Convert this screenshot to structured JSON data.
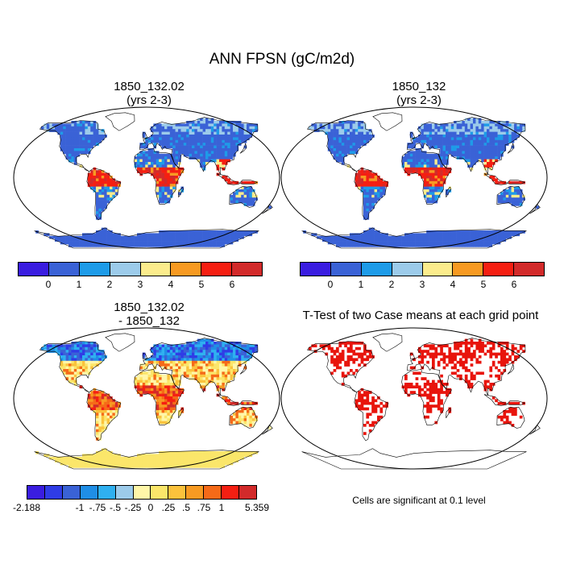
{
  "title": "ANN FPSN (gC/m2d)",
  "panels": {
    "p1": {
      "title": "1850_132.02\n(yrs 2-3)"
    },
    "p2": {
      "title": "1850_132\n(yrs 2-3)"
    },
    "p3": {
      "title": "1850_132.02\n- 1850_132"
    },
    "p4": {
      "title": "T-Test of two Case means at each grid point"
    }
  },
  "colorbar_main": {
    "colors": [
      "#3a1de0",
      "#3a62d6",
      "#1e9be8",
      "#9ccbea",
      "#fbec8c",
      "#f79a22",
      "#f51f12",
      "#d22a2a"
    ],
    "labels": [
      "0",
      "1",
      "2",
      "3",
      "4",
      "5",
      "6"
    ]
  },
  "colorbar_diff": {
    "colors": [
      "#3a1de0",
      "#2f3ce6",
      "#3a62d6",
      "#1f8ee6",
      "#2fb0f0",
      "#9ccbea",
      "#fff6a8",
      "#fbe66a",
      "#fbc23c",
      "#f79a22",
      "#f56a18",
      "#f51f12",
      "#d22a2a"
    ],
    "labels": [
      "-2.188",
      "-1",
      "-.75",
      "-.5",
      "-.25",
      "0",
      ".25",
      ".5",
      ".75",
      "1",
      "5.359"
    ]
  },
  "footnote": "Cells are significant at 0.1 level",
  "legend_colors": {
    "ocean": "#ffffff",
    "outline": "#000000",
    "significant": "#e8140c"
  }
}
